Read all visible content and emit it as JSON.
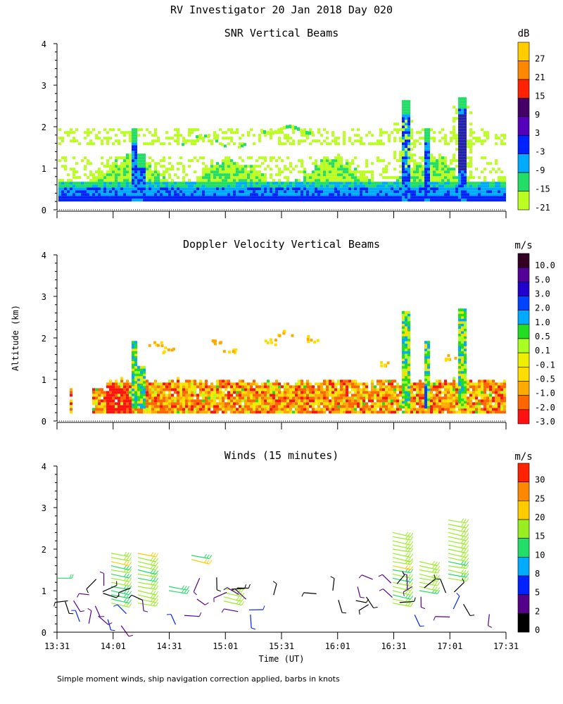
{
  "page": {
    "title": "RV Investigator  20 Jan 2018 Day 020",
    "shared_ylabel": "Altitude (km)",
    "xlabel": "Time (UT)",
    "footnote": "Simple moment winds, ship navigation correction applied, barbs in knots",
    "x_ticks": [
      "13:31",
      "14:01",
      "14:31",
      "15:01",
      "15:31",
      "16:01",
      "16:31",
      "17:01",
      "17:31"
    ],
    "y_ticks": [
      "0",
      "1",
      "2",
      "3",
      "4"
    ]
  },
  "chart_data": [
    {
      "type": "heatmap",
      "title": "SNR Vertical Beams",
      "colorbar_unit": "dB",
      "colorbar_labels": [
        "27",
        "21",
        "15",
        "9",
        "3",
        "-3",
        "-9",
        "-15",
        "-21"
      ],
      "colorbar_colors": [
        "#ffcc00",
        "#ff8800",
        "#ff2200",
        "#440066",
        "#5500bb",
        "#0022ff",
        "#00aaff",
        "#22dd66",
        "#bbff22"
      ],
      "ylim": [
        0,
        4
      ],
      "x_range": [
        "13:31",
        "17:31"
      ],
      "grid": false
    },
    {
      "type": "heatmap",
      "title": "Doppler Velocity Vertical Beams",
      "colorbar_unit": "m/s",
      "colorbar_labels": [
        "10.0",
        "5.0",
        "3.0",
        "2.0",
        "1.0",
        "0.5",
        "0.1",
        "-0.1",
        "-0.5",
        "-1.0",
        "-2.0",
        "-3.0"
      ],
      "colorbar_colors": [
        "#330022",
        "#550099",
        "#2200cc",
        "#0044ff",
        "#00aaff",
        "#22dd22",
        "#aaff22",
        "#eeee00",
        "#ffdd00",
        "#ffaa00",
        "#ff6600",
        "#ff1111"
      ],
      "ylim": [
        0,
        4
      ],
      "x_range": [
        "13:31",
        "17:31"
      ],
      "grid": false
    },
    {
      "type": "scatter",
      "title": "Winds (15 minutes)",
      "colorbar_unit": "m/s",
      "colorbar_labels": [
        "30",
        "25",
        "20",
        "15",
        "10",
        "8",
        "5",
        "2",
        "0"
      ],
      "colorbar_colors": [
        "#ff2200",
        "#ff8800",
        "#ffcc00",
        "#99ee22",
        "#22dd66",
        "#00aaff",
        "#0022ff",
        "#550088",
        "#000000"
      ],
      "ylim": [
        0,
        4
      ],
      "x_range": [
        "13:31",
        "17:31"
      ],
      "grid": false
    }
  ]
}
